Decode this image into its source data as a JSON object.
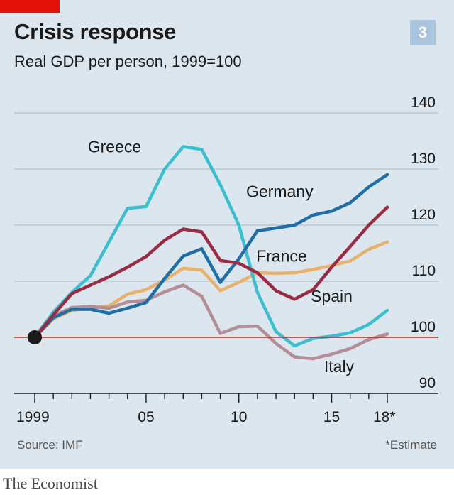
{
  "header": {
    "title": "Crisis response",
    "subtitle": "Real GDP per person, 1999=100",
    "chart_number": "3"
  },
  "footer": {
    "source": "Source: IMF",
    "footnote": "*Estimate",
    "brand": "The Economist"
  },
  "colors": {
    "Greece": "#3bbfd0",
    "Germany": "#1f6ea6",
    "Spain": "#9b2a42",
    "France": "#e8b26a",
    "Italy": "#b48d97",
    "baseline": "#e3120b",
    "grid": "#a9b7c2",
    "background": "#dce6ee",
    "accent": "#e3120b"
  },
  "chart_data": {
    "type": "line",
    "title": "Crisis response",
    "subtitle": "Real GDP per person, 1999=100",
    "xlabel": "",
    "ylabel": "",
    "xlim": [
      1999,
      2018
    ],
    "ylim": [
      90,
      140
    ],
    "yticks": [
      90,
      100,
      110,
      120,
      130,
      140
    ],
    "xticks": [
      1999,
      2005,
      2010,
      2015,
      2018
    ],
    "xtick_labels": [
      "1999",
      "05",
      "10",
      "15",
      "18*"
    ],
    "grid": true,
    "reference_line": 100,
    "x": [
      1999,
      2000,
      2001,
      2002,
      2003,
      2004,
      2005,
      2006,
      2007,
      2008,
      2009,
      2010,
      2011,
      2012,
      2013,
      2014,
      2015,
      2016,
      2017,
      2018
    ],
    "series": [
      {
        "name": "Greece",
        "values": [
          100,
          104.5,
          108,
          111,
          117,
          123,
          123.3,
          130,
          134,
          133.5,
          127.2,
          120,
          108,
          101,
          98.5,
          99.8,
          100.2,
          100.8,
          102.3,
          104.8
        ]
      },
      {
        "name": "Germany",
        "values": [
          100,
          103.5,
          105,
          105,
          104.3,
          105.2,
          106.2,
          110.5,
          114.5,
          115.8,
          109.8,
          114,
          119,
          119.5,
          120,
          121.8,
          122.5,
          124,
          126.8,
          129
        ]
      },
      {
        "name": "Spain",
        "values": [
          100,
          104,
          107.8,
          109.3,
          110.8,
          112.5,
          114.4,
          117.3,
          119.3,
          118.8,
          113.7,
          113.2,
          111.5,
          108.3,
          106.8,
          108.5,
          112.5,
          116.2,
          120,
          123.2
        ]
      },
      {
        "name": "France",
        "values": [
          100,
          103.3,
          104.8,
          105.2,
          105.6,
          107.7,
          108.5,
          110.2,
          112.3,
          112,
          108.3,
          109.8,
          111.5,
          111.4,
          111.5,
          112.1,
          112.8,
          113.6,
          115.7,
          117
        ]
      },
      {
        "name": "Italy",
        "values": [
          100,
          103.8,
          105.3,
          105.5,
          105.2,
          106.3,
          106.6,
          108.1,
          109.3,
          107.3,
          100.7,
          101.9,
          102,
          98.9,
          96.5,
          96.2,
          97,
          98,
          99.6,
          100.6
        ]
      }
    ]
  }
}
